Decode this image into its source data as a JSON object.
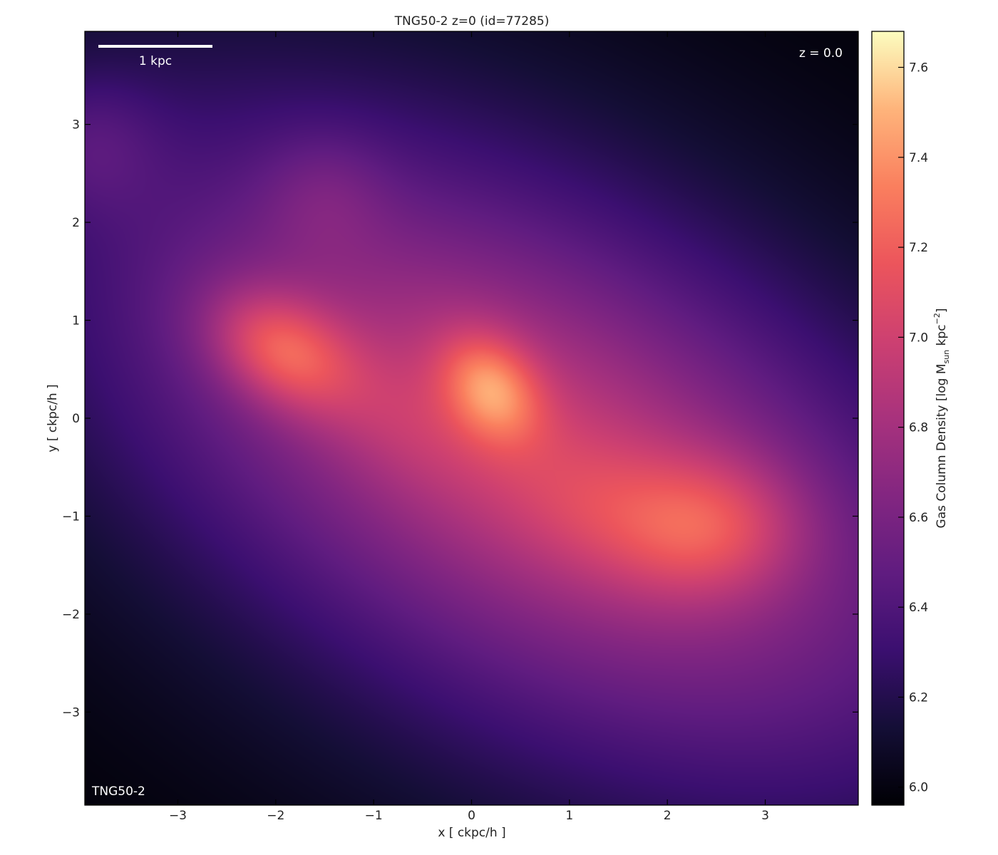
{
  "chart_data": {
    "type": "heatmap",
    "title": "TNG50-2 z=0 (id=77285)",
    "xlabel": "x [ ckpc/h ]",
    "ylabel": "y [ ckpc/h ]",
    "xlim": [
      -3.95,
      3.95
    ],
    "ylim": [
      -3.95,
      3.95
    ],
    "xticks": [
      -3,
      -2,
      -1,
      0,
      1,
      2,
      3
    ],
    "yticks": [
      -3,
      -2,
      -1,
      0,
      1,
      2,
      3
    ],
    "colorbar": {
      "label": "Gas Column Density [log M",
      "label_sub": "sun",
      "label_rest": " kpc",
      "label_sup": "−2",
      "label_end": "]",
      "range": [
        5.96,
        7.68
      ],
      "ticks": [
        6.0,
        6.2,
        6.4,
        6.6,
        6.8,
        7.0,
        7.2,
        7.4,
        7.6
      ],
      "colormap": "magma"
    },
    "scalebar_label": "1 kpc",
    "redshift_label": "z = 0.0",
    "sim_label": "TNG50-2",
    "background_level": 5.96,
    "components": [
      {
        "x": 0.6,
        "y": -0.4,
        "sx": 4.0,
        "sy": 2.2,
        "angle": -30,
        "amp": 0.62
      },
      {
        "x": 0.6,
        "y": -0.3,
        "sx": 2.8,
        "sy": 1.3,
        "angle": -30,
        "amp": 0.38
      },
      {
        "x": -3.9,
        "y": 2.8,
        "sx": 0.5,
        "sy": 0.5,
        "angle": 0,
        "amp": 0.2
      },
      {
        "x": -1.5,
        "y": 2.3,
        "sx": 0.45,
        "sy": 0.45,
        "angle": 0,
        "amp": 0.15
      },
      {
        "x": -1.95,
        "y": 0.7,
        "sx": 0.55,
        "sy": 0.38,
        "angle": -30,
        "amp": 0.55
      },
      {
        "x": 0.2,
        "y": 0.3,
        "sx": 0.42,
        "sy": 0.32,
        "angle": -55,
        "amp": 0.55
      },
      {
        "x": 2.45,
        "y": -1.1,
        "sx": 0.65,
        "sy": 0.5,
        "angle": 0,
        "amp": 0.4
      },
      {
        "x": 1.3,
        "y": -0.9,
        "sx": 0.7,
        "sy": 0.5,
        "angle": -20,
        "amp": 0.15
      },
      {
        "x": -0.8,
        "y": 0.0,
        "sx": 0.7,
        "sy": 0.4,
        "angle": -30,
        "amp": 0.1
      }
    ]
  }
}
